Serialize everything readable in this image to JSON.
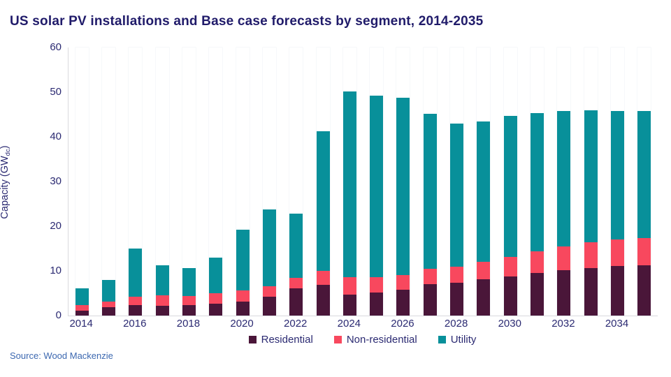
{
  "page": {
    "title": "US solar PV installations and Base case forecasts by segment, 2014-2035",
    "source": "Source: Wood Mackenzie"
  },
  "colors": {
    "background": "#ffffff",
    "title_text": "#201b6a",
    "axis_text": "#2b2a72",
    "source_text": "#3c68b0",
    "axis_line": "#d9d9de",
    "residential": "#4a1639",
    "non_residential": "#f8485e",
    "utility": "#08909a"
  },
  "chart_data": {
    "type": "bar",
    "stacked": true,
    "title": "US solar PV installations and Base case forecasts by segment, 2014-2035",
    "xlabel": "",
    "ylabel": "Capacity (GWdc)",
    "ylabel_main": "Capacity (GW",
    "ylabel_subscript": "dc",
    "ylabel_suffix": ")",
    "ylim": [
      0,
      60
    ],
    "yticks": [
      0,
      10,
      20,
      30,
      40,
      50,
      60
    ],
    "grid": false,
    "legend_position": "bottom",
    "categories": [
      "2014",
      "2015",
      "2016",
      "2017",
      "2018",
      "2019",
      "2020",
      "2021",
      "2022",
      "2023",
      "2024",
      "2025",
      "2026",
      "2027",
      "2028",
      "2029",
      "2030",
      "2031",
      "2032",
      "2033",
      "2034",
      "2035"
    ],
    "x_tick_labels": [
      "2014",
      "2016",
      "2018",
      "2020",
      "2022",
      "2024",
      "2026",
      "2028",
      "2030",
      "2032",
      "2034"
    ],
    "series": [
      {
        "name": "Residential",
        "color": "#4a1639",
        "values": [
          1.1,
          1.9,
          2.4,
          2.2,
          2.3,
          2.7,
          3.1,
          4.2,
          6.1,
          6.8,
          4.7,
          5.1,
          5.8,
          7.1,
          7.4,
          8.2,
          8.8,
          9.5,
          10.2,
          10.7,
          11.1,
          11.3
        ]
      },
      {
        "name": "Non-residential",
        "color": "#f8485e",
        "values": [
          1.2,
          1.2,
          1.8,
          2.3,
          2.0,
          2.3,
          2.5,
          2.4,
          2.4,
          3.2,
          3.9,
          3.5,
          3.3,
          3.3,
          3.6,
          3.9,
          4.4,
          4.9,
          5.3,
          5.7,
          5.9,
          6.1
        ]
      },
      {
        "name": "Utility",
        "color": "#08909a",
        "values": [
          3.8,
          4.8,
          10.8,
          6.8,
          6.3,
          7.9,
          13.6,
          17.1,
          14.3,
          31.3,
          41.5,
          40.6,
          39.7,
          34.7,
          32.0,
          31.3,
          31.5,
          30.9,
          30.3,
          29.6,
          28.8,
          28.4
        ]
      }
    ]
  }
}
